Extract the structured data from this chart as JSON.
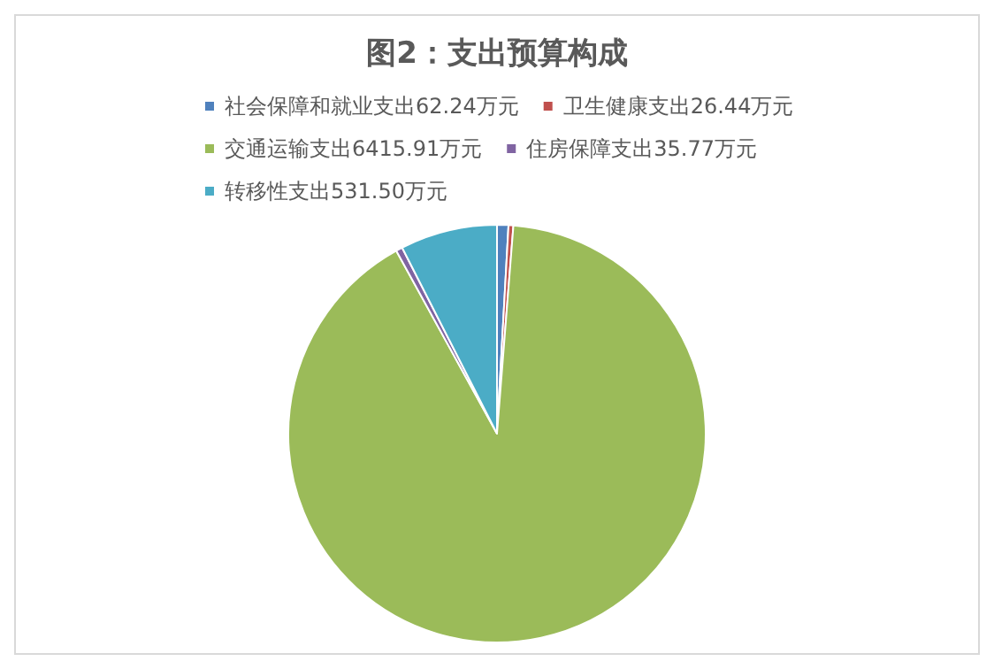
{
  "chart_data": {
    "type": "pie",
    "title": "图2：支出预算构成",
    "categories": [
      "社会保障和就业支出62.24万元",
      "卫生健康支出26.44万元",
      "交通运输支出6415.91万元",
      "住房保障支出35.77万元",
      "转移性支出531.50万元"
    ],
    "values": [
      62.24,
      26.44,
      6415.91,
      35.77,
      531.5
    ],
    "colors": [
      "#4f81bd",
      "#c0504d",
      "#9bbb59",
      "#8064a2",
      "#4bacc6"
    ],
    "legend": "top"
  }
}
